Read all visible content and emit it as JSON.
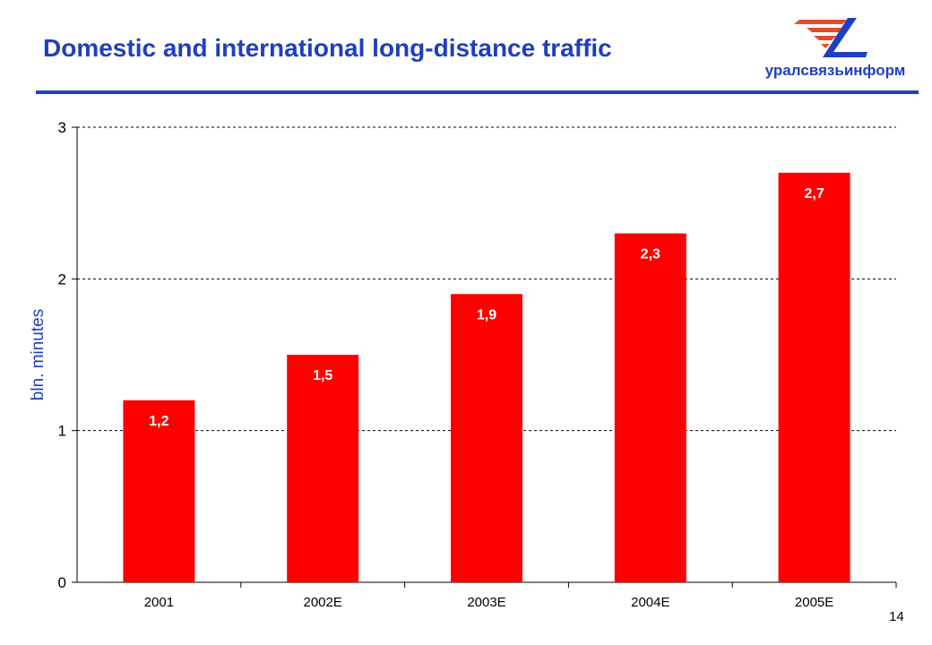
{
  "slide": {
    "title": "Domestic and international long-distance traffic",
    "logo_text": "уралсвязьинформ",
    "page_number": "14"
  },
  "colors": {
    "title": "#1f3fbf",
    "bar": "#ff0000",
    "ylabel": "#1f3fbf",
    "logo_stripes": "#e84a2a",
    "logo_mark": "#1f3fbf"
  },
  "chart_data": {
    "type": "bar",
    "categories": [
      "2001",
      "2002E",
      "2003E",
      "2004E",
      "2005E"
    ],
    "values": [
      1.2,
      1.5,
      1.9,
      2.3,
      2.7
    ],
    "data_labels": [
      "1,2",
      "1,5",
      "1,9",
      "2,3",
      "2,7"
    ],
    "ylabel": "bln. minutes",
    "ylim": [
      0,
      3
    ],
    "yticks": [
      0,
      1,
      2,
      3
    ],
    "grid": "horizontal dashed",
    "legend": "none"
  }
}
